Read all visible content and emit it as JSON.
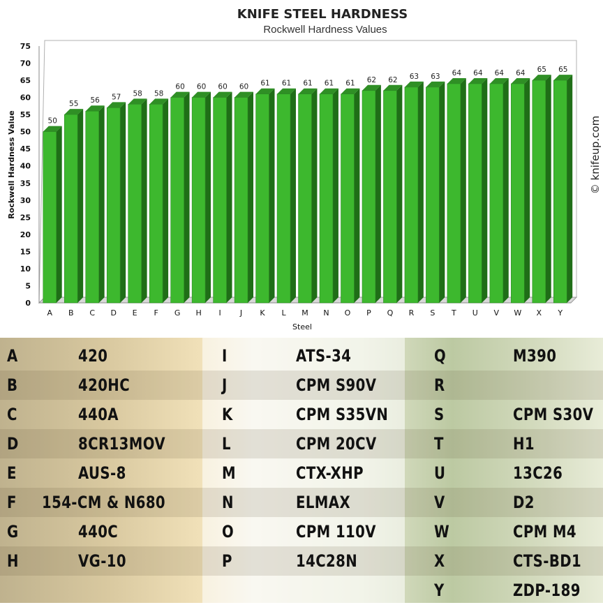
{
  "chart_data": {
    "type": "bar",
    "title": "KNIFE STEEL HARDNESS",
    "subtitle": "Rockwell Hardness Values",
    "xlabel": "Steel",
    "ylabel": "Rockwell Hardness Value",
    "ylim": [
      0,
      75
    ],
    "yticks": [
      0,
      5,
      10,
      15,
      20,
      25,
      30,
      35,
      40,
      45,
      50,
      55,
      60,
      65,
      70,
      75
    ],
    "categories": [
      "A",
      "B",
      "C",
      "D",
      "E",
      "F",
      "G",
      "H",
      "I",
      "J",
      "K",
      "L",
      "M",
      "N",
      "O",
      "P",
      "Q",
      "R",
      "S",
      "T",
      "U",
      "V",
      "W",
      "X",
      "Y"
    ],
    "values": [
      50,
      55,
      56,
      57,
      58,
      58,
      60,
      60,
      60,
      60,
      61,
      61,
      61,
      61,
      61,
      62,
      62,
      63,
      63,
      64,
      64,
      64,
      64,
      65,
      65
    ],
    "bar_color": "#3db82e",
    "bar_dark": "#1f6e17",
    "grid": false
  },
  "watermark": "© knifeup.com",
  "legend": [
    {
      "letter": "A",
      "steel": "420"
    },
    {
      "letter": "B",
      "steel": "420HC"
    },
    {
      "letter": "C",
      "steel": "440A"
    },
    {
      "letter": "D",
      "steel": "8CR13MOV"
    },
    {
      "letter": "E",
      "steel": "AUS-8"
    },
    {
      "letter": "F",
      "steel": "154-CM  &  N680"
    },
    {
      "letter": "G",
      "steel": "440C"
    },
    {
      "letter": "H",
      "steel": "VG-10"
    },
    {
      "letter": "I",
      "steel": "ATS-34"
    },
    {
      "letter": "J",
      "steel": "CPM S90V"
    },
    {
      "letter": "K",
      "steel": "CPM S35VN"
    },
    {
      "letter": "L",
      "steel": "CPM 20CV"
    },
    {
      "letter": "M",
      "steel": "CTX-XHP"
    },
    {
      "letter": "N",
      "steel": "ELMAX"
    },
    {
      "letter": "O",
      "steel": "CPM 110V"
    },
    {
      "letter": "P",
      "steel": "14C28N"
    },
    {
      "letter": "Q",
      "steel": "M390"
    },
    {
      "letter": "R",
      "steel": ""
    },
    {
      "letter": "S",
      "steel": "CPM S30V"
    },
    {
      "letter": "T",
      "steel": "H1"
    },
    {
      "letter": "U",
      "steel": "13C26"
    },
    {
      "letter": "V",
      "steel": "D2"
    },
    {
      "letter": "W",
      "steel": "CPM M4"
    },
    {
      "letter": "X",
      "steel": "CTS-BD1"
    },
    {
      "letter": "Y",
      "steel": "ZDP-189"
    }
  ]
}
